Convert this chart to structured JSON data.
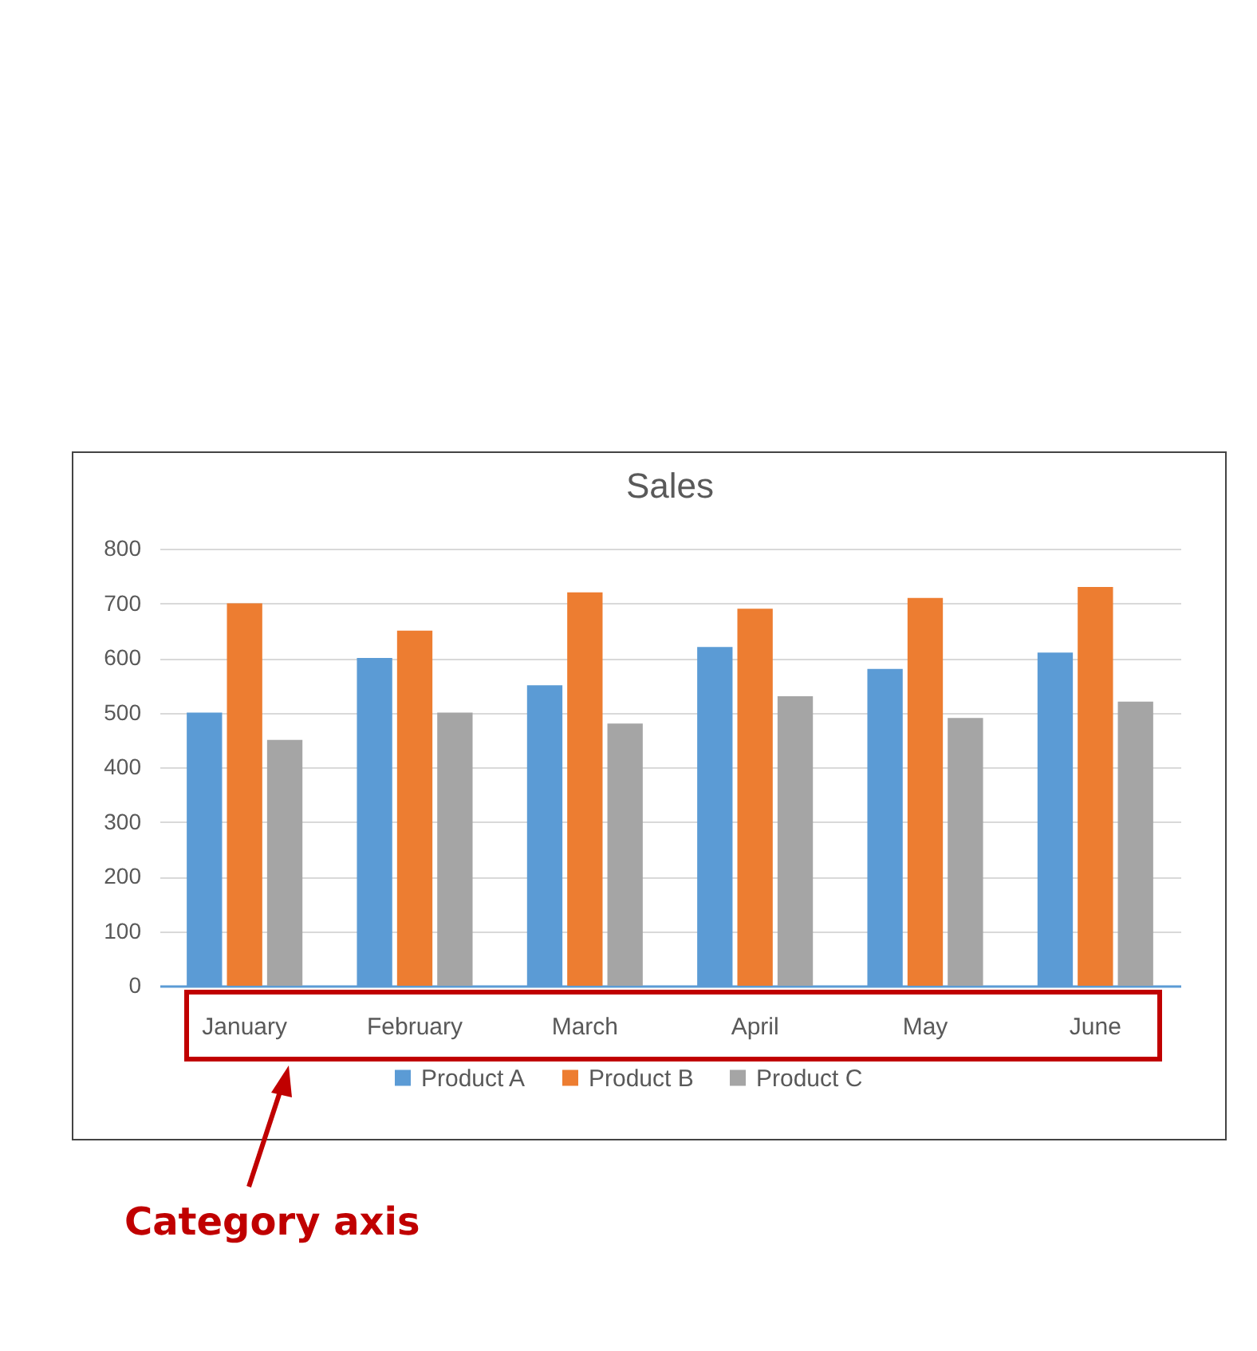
{
  "chart_data": {
    "type": "bar",
    "title": "Sales",
    "categories": [
      "January",
      "February",
      "March",
      "April",
      "May",
      "June"
    ],
    "series": [
      {
        "name": "Product A",
        "color": "#5b9bd5",
        "values": [
          500,
          600,
          550,
          620,
          580,
          610
        ]
      },
      {
        "name": "Product B",
        "color": "#ed7d31",
        "values": [
          700,
          650,
          720,
          690,
          710,
          730
        ]
      },
      {
        "name": "Product C",
        "color": "#a5a5a5",
        "values": [
          450,
          500,
          480,
          530,
          490,
          520
        ]
      }
    ],
    "ylim": [
      0,
      800
    ],
    "yticks": [
      0,
      100,
      200,
      300,
      400,
      500,
      600,
      700,
      800
    ],
    "grid": "y",
    "legend": "bottom",
    "annotations": [
      "Category axis"
    ]
  }
}
